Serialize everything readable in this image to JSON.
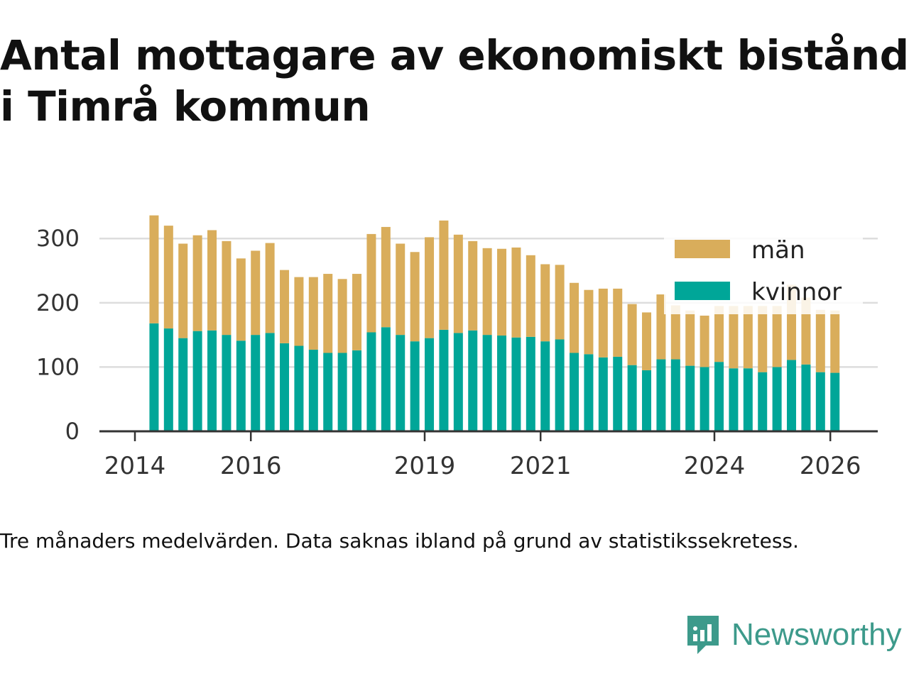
{
  "title": "Antal mottagare av ekonomiskt bistånd i Timrå kommun",
  "note": "Tre månaders medelvärden. Data saknas ibland på grund av statistikssekretess.",
  "brand": {
    "name": "Newsworthy",
    "icon": "newsworthy-logo-icon",
    "color": "#3d9a8b"
  },
  "colors": {
    "man": "#d9ad5b",
    "kvinnor": "#00a698",
    "grid": "#dddddd",
    "axis": "#333333"
  },
  "chart_data": {
    "type": "bar",
    "stacked": true,
    "title": "",
    "xlabel": "",
    "ylabel": "",
    "ylim": [
      0,
      340
    ],
    "xlim": [
      2014.0,
      2026.5
    ],
    "y_ticks": [
      0,
      100,
      200,
      300
    ],
    "x_ticks": [
      2014,
      2016,
      2019,
      2021,
      2024,
      2026
    ],
    "grid": true,
    "legend": {
      "placement": "top-right",
      "entries": [
        "män",
        "kvinnor"
      ]
    },
    "x": [
      2014.33,
      2014.58,
      2014.83,
      2015.08,
      2015.33,
      2015.58,
      2015.83,
      2016.08,
      2016.33,
      2016.58,
      2016.83,
      2017.08,
      2017.33,
      2017.58,
      2017.83,
      2018.08,
      2018.33,
      2018.58,
      2018.83,
      2019.08,
      2019.33,
      2019.58,
      2019.83,
      2020.08,
      2020.33,
      2020.58,
      2020.83,
      2021.08,
      2021.33,
      2021.58,
      2021.83,
      2022.08,
      2022.33,
      2022.58,
      2022.83,
      2023.08,
      2023.33,
      2023.58,
      2023.83,
      2024.08,
      2024.33,
      2024.58,
      2024.83,
      2025.08,
      2025.33,
      2025.58,
      2025.83,
      2026.08
    ],
    "series": [
      {
        "name": "kvinnor",
        "color": "#00a698",
        "values": [
          168,
          160,
          145,
          156,
          157,
          150,
          141,
          150,
          153,
          137,
          133,
          127,
          122,
          122,
          126,
          154,
          162,
          150,
          140,
          145,
          158,
          153,
          157,
          150,
          149,
          146,
          147,
          140,
          143,
          122,
          120,
          115,
          116,
          103,
          95,
          112,
          112,
          102,
          100,
          108,
          98,
          98,
          92,
          100,
          111,
          104,
          92,
          91
        ]
      },
      {
        "name": "män",
        "color": "#d9ad5b",
        "values": [
          168,
          160,
          147,
          149,
          156,
          146,
          128,
          131,
          140,
          114,
          107,
          113,
          123,
          115,
          119,
          153,
          156,
          142,
          139,
          157,
          170,
          153,
          139,
          135,
          135,
          140,
          127,
          120,
          116,
          109,
          100,
          107,
          106,
          95,
          90,
          101,
          84,
          86,
          80,
          87,
          97,
          97,
          103,
          95,
          117,
          104,
          97,
          97
        ]
      }
    ]
  }
}
